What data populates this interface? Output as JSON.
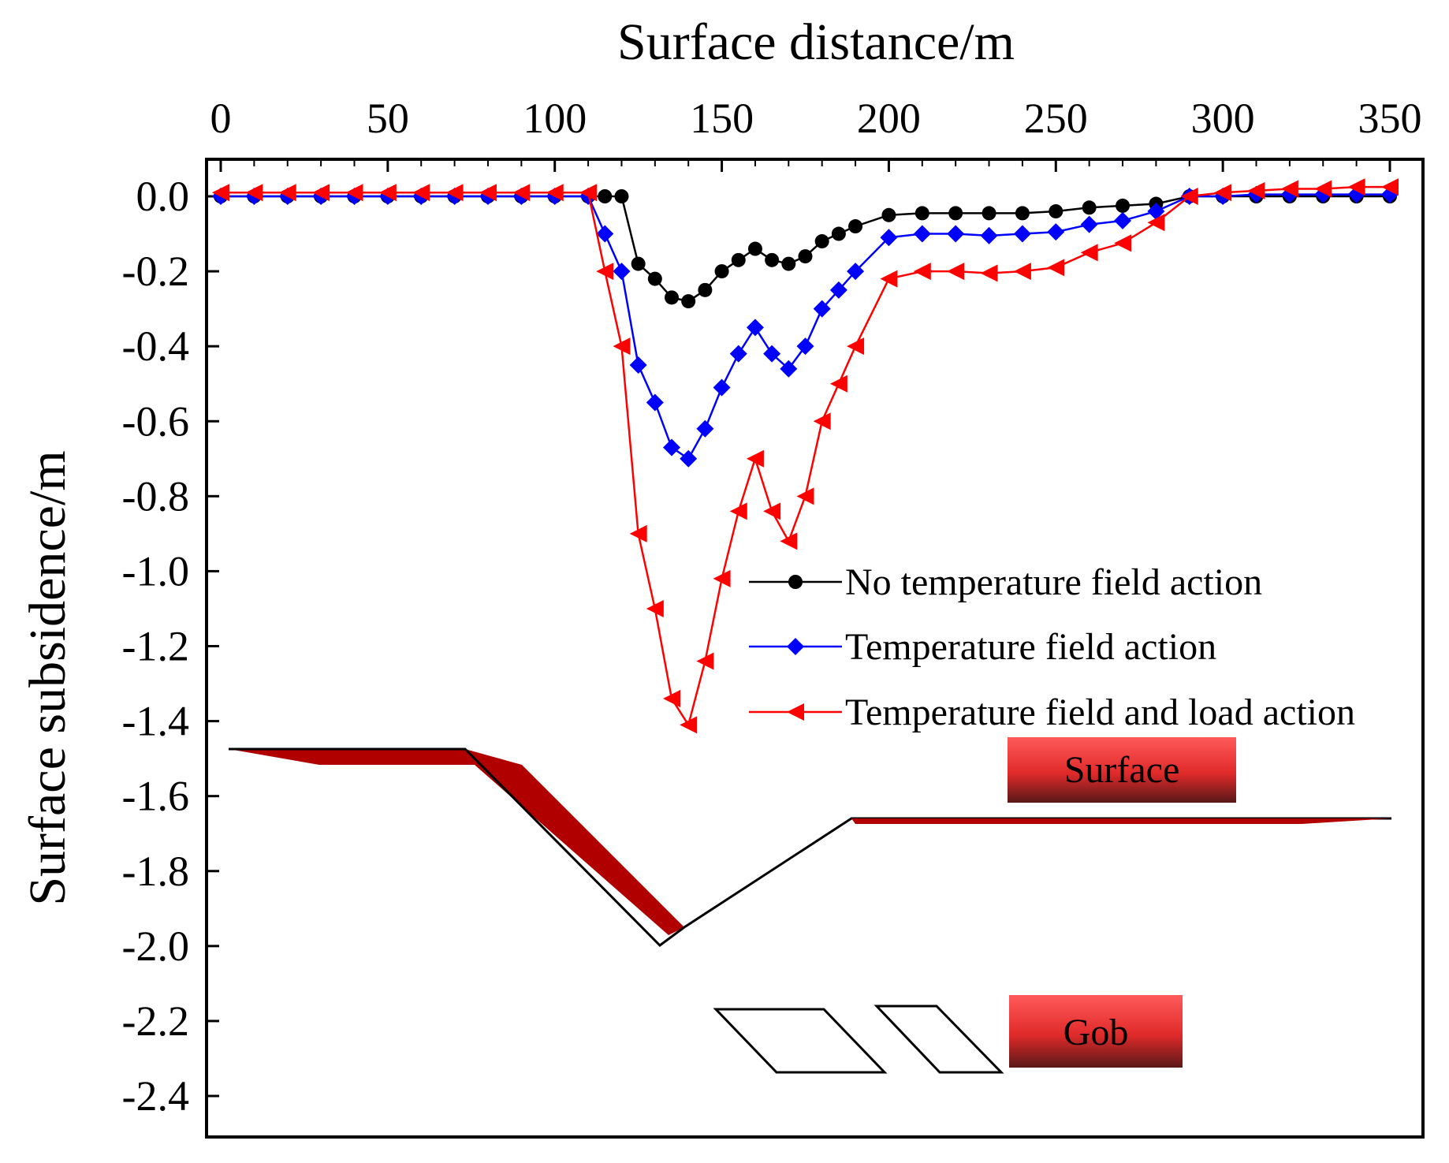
{
  "chart_data": {
    "type": "line",
    "xlabel": "Surface distance/m",
    "ylabel": "Surface subsidence/m",
    "xlim": [
      0,
      350
    ],
    "ylim": [
      -2.5,
      0.1
    ],
    "x_ticks": [
      0,
      50,
      100,
      150,
      200,
      250,
      300,
      350
    ],
    "x_tick_labels": [
      "0",
      "50",
      "100",
      "150",
      "200",
      "250",
      "300",
      "350"
    ],
    "y_ticks": [
      0.0,
      -0.2,
      -0.4,
      -0.6,
      -0.8,
      -1.0,
      -1.2,
      -1.4,
      -1.6,
      -1.8,
      -2.0,
      -2.2,
      -2.4
    ],
    "y_tick_labels": [
      "0.0",
      "-0.2",
      "-0.4",
      "-0.6",
      "-0.8",
      "-1.0",
      "-1.2",
      "-1.4",
      "-1.6",
      "-1.8",
      "-2.0",
      "-2.2",
      "-2.4"
    ],
    "x_axis_position": "top",
    "grid": false,
    "legend_position": "middle-right",
    "series": [
      {
        "name": "No temperature field action",
        "color": "#000000",
        "marker": "circle",
        "points": [
          [
            0,
            0
          ],
          [
            10,
            0
          ],
          [
            20,
            0
          ],
          [
            30,
            0
          ],
          [
            40,
            0
          ],
          [
            50,
            0
          ],
          [
            60,
            0
          ],
          [
            70,
            0
          ],
          [
            80,
            0
          ],
          [
            90,
            0
          ],
          [
            100,
            0
          ],
          [
            110,
            0
          ],
          [
            115,
            0
          ],
          [
            120,
            0
          ],
          [
            125,
            -0.18
          ],
          [
            130,
            -0.22
          ],
          [
            135,
            -0.27
          ],
          [
            140,
            -0.28
          ],
          [
            145,
            -0.25
          ],
          [
            150,
            -0.2
          ],
          [
            155,
            -0.17
          ],
          [
            160,
            -0.14
          ],
          [
            165,
            -0.17
          ],
          [
            170,
            -0.18
          ],
          [
            175,
            -0.16
          ],
          [
            180,
            -0.12
          ],
          [
            185,
            -0.1
          ],
          [
            190,
            -0.08
          ],
          [
            200,
            -0.05
          ],
          [
            210,
            -0.045
          ],
          [
            220,
            -0.045
          ],
          [
            230,
            -0.045
          ],
          [
            240,
            -0.045
          ],
          [
            250,
            -0.04
          ],
          [
            260,
            -0.03
          ],
          [
            270,
            -0.025
          ],
          [
            280,
            -0.02
          ],
          [
            290,
            0
          ],
          [
            300,
            0
          ],
          [
            310,
            0
          ],
          [
            320,
            0
          ],
          [
            330,
            0
          ],
          [
            340,
            0
          ],
          [
            350,
            0
          ]
        ]
      },
      {
        "name": "Temperature field action",
        "color": "#0000ff",
        "marker": "diamond",
        "points": [
          [
            0,
            0
          ],
          [
            10,
            0
          ],
          [
            20,
            0
          ],
          [
            30,
            0
          ],
          [
            40,
            0
          ],
          [
            50,
            0
          ],
          [
            60,
            0
          ],
          [
            70,
            0
          ],
          [
            80,
            0
          ],
          [
            90,
            0
          ],
          [
            100,
            0
          ],
          [
            110,
            0
          ],
          [
            115,
            -0.1
          ],
          [
            120,
            -0.2
          ],
          [
            125,
            -0.45
          ],
          [
            130,
            -0.55
          ],
          [
            135,
            -0.67
          ],
          [
            140,
            -0.7
          ],
          [
            145,
            -0.62
          ],
          [
            150,
            -0.51
          ],
          [
            155,
            -0.42
          ],
          [
            160,
            -0.35
          ],
          [
            165,
            -0.42
          ],
          [
            170,
            -0.46
          ],
          [
            175,
            -0.4
          ],
          [
            180,
            -0.3
          ],
          [
            185,
            -0.25
          ],
          [
            190,
            -0.2
          ],
          [
            200,
            -0.11
          ],
          [
            210,
            -0.1
          ],
          [
            220,
            -0.1
          ],
          [
            230,
            -0.105
          ],
          [
            240,
            -0.1
          ],
          [
            250,
            -0.095
          ],
          [
            260,
            -0.075
          ],
          [
            270,
            -0.065
          ],
          [
            280,
            -0.04
          ],
          [
            290,
            0
          ],
          [
            300,
            0
          ],
          [
            310,
            0.005
          ],
          [
            320,
            0.005
          ],
          [
            330,
            0.005
          ],
          [
            340,
            0.005
          ],
          [
            350,
            0.005
          ]
        ]
      },
      {
        "name": "Temperature field and load action",
        "color": "#ff0000",
        "marker": "triangle-left",
        "points": [
          [
            0,
            0.01
          ],
          [
            10,
            0.01
          ],
          [
            20,
            0.01
          ],
          [
            30,
            0.01
          ],
          [
            40,
            0.01
          ],
          [
            50,
            0.01
          ],
          [
            60,
            0.01
          ],
          [
            70,
            0.01
          ],
          [
            80,
            0.01
          ],
          [
            90,
            0.01
          ],
          [
            100,
            0.01
          ],
          [
            110,
            0.01
          ],
          [
            115,
            -0.2
          ],
          [
            120,
            -0.4
          ],
          [
            125,
            -0.9
          ],
          [
            130,
            -1.1
          ],
          [
            135,
            -1.34
          ],
          [
            140,
            -1.41
          ],
          [
            145,
            -1.24
          ],
          [
            150,
            -1.02
          ],
          [
            155,
            -0.84
          ],
          [
            160,
            -0.7
          ],
          [
            165,
            -0.84
          ],
          [
            170,
            -0.92
          ],
          [
            175,
            -0.8
          ],
          [
            180,
            -0.6
          ],
          [
            185,
            -0.5
          ],
          [
            190,
            -0.4
          ],
          [
            200,
            -0.22
          ],
          [
            210,
            -0.2
          ],
          [
            220,
            -0.2
          ],
          [
            230,
            -0.205
          ],
          [
            240,
            -0.2
          ],
          [
            250,
            -0.19
          ],
          [
            260,
            -0.15
          ],
          [
            270,
            -0.125
          ],
          [
            280,
            -0.07
          ],
          [
            290,
            0
          ],
          [
            300,
            0.01
          ],
          [
            310,
            0.015
          ],
          [
            320,
            0.02
          ],
          [
            330,
            0.02
          ],
          [
            340,
            0.025
          ],
          [
            350,
            0.025
          ]
        ]
      }
    ],
    "annotations": {
      "surface_label": "Surface",
      "gob_label": "Gob"
    }
  }
}
